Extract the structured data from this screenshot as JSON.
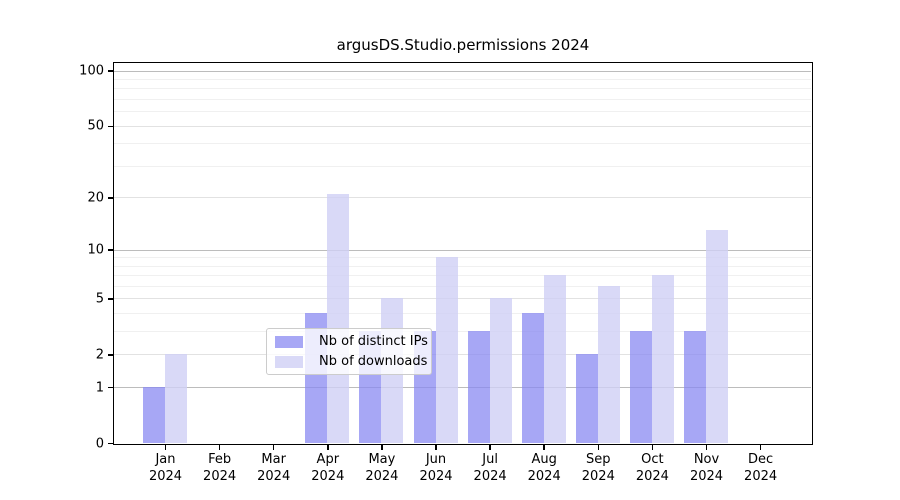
{
  "chart_data": {
    "type": "bar",
    "title": "argusDS.Studio.permissions 2024",
    "x_months": [
      "Jan",
      "Feb",
      "Mar",
      "Apr",
      "May",
      "Jun",
      "Jul",
      "Aug",
      "Sep",
      "Oct",
      "Nov",
      "Dec"
    ],
    "x_year": "2024",
    "series": [
      {
        "name": "Nb of distinct IPs",
        "color": "rgba(138,138,242,0.75)",
        "values": [
          1,
          0,
          0,
          4,
          3,
          3,
          3,
          4,
          2,
          3,
          3,
          0
        ]
      },
      {
        "name": "Nb of downloads",
        "color": "rgba(207,207,245,0.8)",
        "values": [
          2,
          0,
          0,
          21,
          5,
          9,
          5,
          7,
          6,
          7,
          13,
          0
        ]
      }
    ],
    "yscale": "log1p",
    "ylim": [
      0,
      110
    ],
    "y_ticks": [
      0,
      1,
      2,
      5,
      10,
      20,
      50,
      100
    ],
    "y_major_gridlines": [
      1,
      10,
      100
    ],
    "y_minor_gridlines": [
      3,
      4,
      6,
      7,
      8,
      9,
      30,
      40,
      60,
      70,
      80,
      90
    ],
    "grid": true,
    "legend_position": "lower center",
    "colors": {
      "major_grid": "#bcbcbc",
      "labeled_minor_grid": "#e2e2e2",
      "minor_grid": "#f0f0f0",
      "spine": "#000000",
      "text": "#000000",
      "background": "#ffffff"
    }
  }
}
